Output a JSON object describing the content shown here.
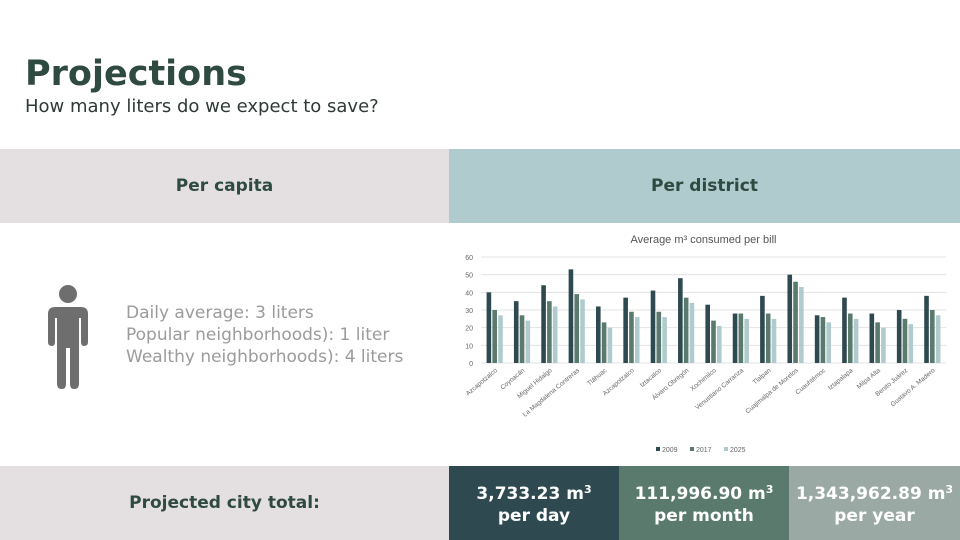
{
  "header": {
    "title": "Projections",
    "subtitle": "How many liters do we expect to save?"
  },
  "columns": {
    "left_label": "Per capita",
    "right_label": "Per district"
  },
  "per_capita": {
    "icon": "person-icon",
    "lines": [
      "Daily average: 3 liters",
      "Popular neighborhoods): 1 liter",
      "Wealthy neighborhoods): 4 liters"
    ]
  },
  "footer": {
    "label": "Projected city total:",
    "daily": {
      "value": "3,733.23 m",
      "unit_sup": "3",
      "period": "per day"
    },
    "monthly": {
      "value": "111,996.90 m",
      "unit_sup": "3",
      "period": "per month"
    },
    "yearly": {
      "value": "1,343,962.89 m",
      "unit_sup": "3",
      "period": "per year"
    }
  },
  "colors": {
    "title": "#2f4a40",
    "series_2009": "#2e4a50",
    "series_2017": "#5a7a6e",
    "series_2025": "#b0cbcd"
  },
  "chart_data": {
    "type": "bar",
    "title": "Average m³ consumed per bill",
    "xlabel": "",
    "ylabel": "",
    "ylim": [
      0,
      60
    ],
    "yticks": [
      0,
      10,
      20,
      30,
      40,
      50,
      60
    ],
    "grid": true,
    "legend": "bottom",
    "categories": [
      "Azcapotzalco",
      "Coyoacán",
      "Miguel Hidalgo",
      "La Magdalena Contreras",
      "Tláhuac",
      "Azcapotzalco",
      "Iztacalco",
      "Álvaro Obregón",
      "Xochimilco",
      "Venustiano Carranza",
      "Tlalpan",
      "Cuajimalpa de Morelos",
      "Cuauhtémoc",
      "Iztapalapa",
      "Milpa Alta",
      "Benito Juárez",
      "Gustavo A. Madero"
    ],
    "series": [
      {
        "name": "2009",
        "values": [
          40,
          35,
          44,
          53,
          32,
          37,
          41,
          48,
          33,
          28,
          38,
          50,
          27,
          37,
          28,
          30,
          38
        ]
      },
      {
        "name": "2017",
        "values": [
          30,
          27,
          35,
          39,
          23,
          29,
          29,
          37,
          24,
          28,
          28,
          46,
          26,
          28,
          23,
          25,
          30
        ]
      },
      {
        "name": "2025",
        "values": [
          27,
          24,
          32,
          36,
          20,
          26,
          26,
          34,
          21,
          25,
          25,
          43,
          23,
          25,
          20,
          22,
          27
        ]
      }
    ]
  }
}
